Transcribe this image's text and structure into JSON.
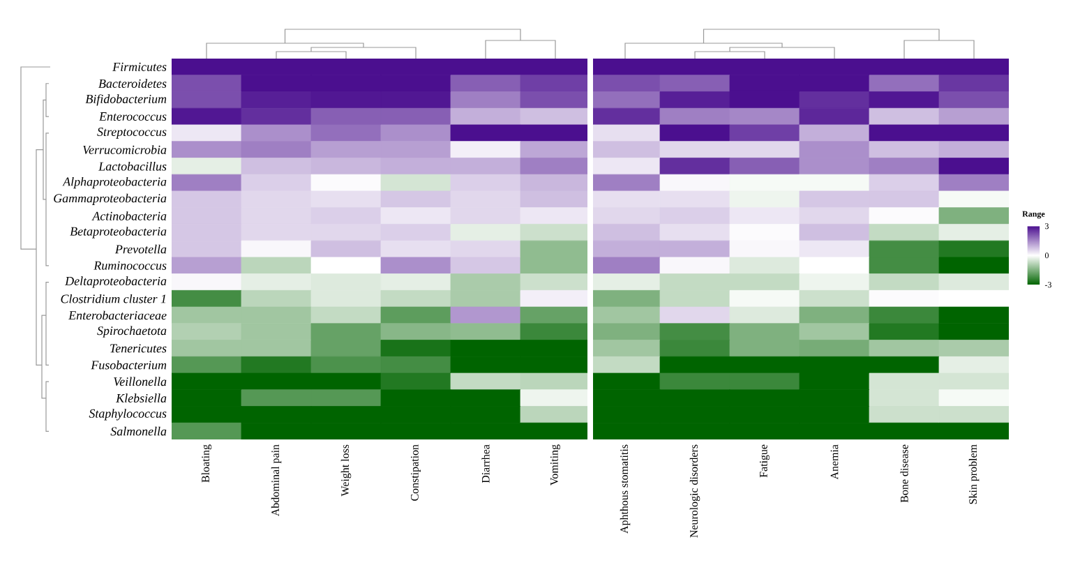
{
  "chart_data": {
    "type": "heatmap",
    "categories": [
      "Bloating",
      "Abdominal pain",
      "Weight loss",
      "Constipation",
      "Diarrhea",
      "Vomiting",
      "Aphthous stomatitis",
      "Neurologic disorders",
      "Fatigue",
      "Anemia",
      "Bone disease",
      "Skin problem"
    ],
    "y_categories": [
      "Firmicutes",
      "Bacteroidetes",
      "Bifidobacterium",
      "Enterococcus",
      "Streptococcus",
      "Verrucomicrobia",
      "Lactobacillus",
      "Alphaproteobacteria",
      "Gammaproteobacteria",
      "Actinobacteria",
      "Betaproteobacteria",
      "Prevotella",
      "Ruminococcus",
      "Deltaproteobacteria",
      "Clostridium cluster 1",
      "Enterobacteriaceae",
      "Spirochaetota",
      "Tenericutes",
      "Fusobacterium",
      "Veillonella",
      "Klebsiella",
      "Staphylococcus",
      "Salmonella"
    ],
    "cells": [
      [
        3,
        3,
        3,
        3,
        3,
        3,
        3,
        3,
        3,
        3,
        3,
        3
      ],
      [
        2.2,
        3,
        3,
        3,
        2,
        2.4,
        2.2,
        2,
        3,
        3,
        1.8,
        2.5
      ],
      [
        2.2,
        2.8,
        2.9,
        2.9,
        1.6,
        2.2,
        1.8,
        2.8,
        3,
        2.6,
        2.9,
        2.2
      ],
      [
        2.9,
        2.6,
        2,
        2,
        1,
        0.8,
        2.6,
        1.6,
        1.5,
        2.7,
        0.8,
        1.2
      ],
      [
        0.3,
        1.4,
        1.8,
        1.4,
        3,
        3,
        0.4,
        3,
        2.4,
        1,
        3,
        3
      ],
      [
        1.4,
        1.6,
        1.2,
        1.2,
        0.2,
        1.1,
        0.8,
        0.5,
        0.5,
        1.4,
        0.8,
        1
      ],
      [
        -0.3,
        0.8,
        0.9,
        1,
        1,
        1.6,
        0.3,
        2.6,
        2,
        1.4,
        1.6,
        3
      ],
      [
        1.6,
        0.6,
        0.05,
        -0.5,
        0.6,
        0.9,
        1.6,
        0.1,
        -0.1,
        -0.1,
        0.6,
        1.6
      ],
      [
        0.7,
        0.5,
        0.4,
        0.7,
        0.5,
        0.8,
        0.4,
        0.4,
        -0.2,
        0.7,
        0.7,
        -0.1
      ],
      [
        0.7,
        0.5,
        0.6,
        0.3,
        0.5,
        0.3,
        0.5,
        0.6,
        0.3,
        0.5,
        0.05,
        -1.5
      ],
      [
        0.7,
        0.5,
        0.5,
        0.6,
        -0.3,
        -0.6,
        0.8,
        0.4,
        0.05,
        0.8,
        -0.7,
        -0.3
      ],
      [
        0.7,
        0.1,
        0.8,
        0.4,
        0.5,
        -1.3,
        1,
        1,
        0.1,
        0.3,
        -2.2,
        -2.6
      ],
      [
        1.2,
        -0.8,
        0,
        1.4,
        0.7,
        -1.3,
        1.6,
        0.1,
        -0.4,
        0,
        -2.2,
        -3
      ],
      [
        0.1,
        -0.3,
        -0.4,
        -0.3,
        -1,
        -0.6,
        -0.3,
        -0.7,
        -0.7,
        -0.2,
        -0.7,
        -0.4
      ],
      [
        -2.2,
        -0.8,
        -0.4,
        -0.7,
        -1,
        0.2,
        -1.5,
        -0.7,
        -0.1,
        -0.6,
        0.05,
        0
      ],
      [
        -1.1,
        -1.1,
        -0.7,
        -1.9,
        1.3,
        -1.8,
        -1.1,
        0.5,
        -0.4,
        -1.5,
        -2.3,
        -3
      ],
      [
        -0.9,
        -1.1,
        -1.8,
        -1.4,
        -1.3,
        -2.3,
        -1.5,
        -2.2,
        -1.5,
        -1.1,
        -2.6,
        -3
      ],
      [
        -1.1,
        -1.1,
        -1.8,
        -2.7,
        -3,
        -3,
        -1.1,
        -2.3,
        -1.5,
        -1.6,
        -1.1,
        -1
      ],
      [
        -2,
        -2.6,
        -2.1,
        -2.2,
        -3,
        -3,
        -0.7,
        -3,
        -3,
        -3,
        -3,
        -0.3
      ],
      [
        -3,
        -3,
        -3,
        -2.6,
        -0.7,
        -0.8,
        -3,
        -2.3,
        -2.3,
        -3,
        -0.5,
        -0.5
      ],
      [
        -3,
        -2,
        -2,
        -3,
        -3,
        -0.2,
        -3,
        -3,
        -3,
        -3,
        -0.5,
        -0.1
      ],
      [
        -3,
        -3,
        -3,
        -3,
        -3,
        -0.8,
        -3,
        -3,
        -3,
        -3,
        -0.6,
        -0.6
      ],
      [
        -2,
        -3,
        -3,
        -3,
        -3,
        -3,
        -3,
        -3,
        -3,
        -3,
        -3,
        -3
      ]
    ],
    "clim": [
      -3,
      3
    ],
    "cticks": [
      -3,
      0,
      3
    ],
    "clabel": "Range"
  }
}
